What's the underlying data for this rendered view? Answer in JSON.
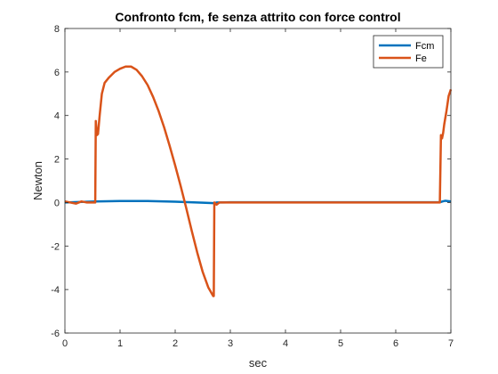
{
  "chart_data": {
    "type": "line",
    "title": "Confronto fcm, fe senza attrito con force control",
    "xlabel": "sec",
    "ylabel": "Newton",
    "xlim": [
      0,
      7
    ],
    "ylim": [
      -6,
      8
    ],
    "xticks": [
      0,
      1,
      2,
      3,
      4,
      5,
      6,
      7
    ],
    "yticks": [
      -6,
      -4,
      -2,
      0,
      2,
      4,
      6,
      8
    ],
    "grid": false,
    "legend_position": "top-right",
    "series": [
      {
        "name": "Fcm",
        "color": "#0072BD",
        "x": [
          0,
          0.55,
          1.0,
          1.5,
          2.0,
          2.5,
          2.7,
          2.75,
          3.0,
          4.0,
          5.0,
          6.0,
          6.8,
          6.85,
          6.9,
          7.0
        ],
        "y": [
          0.0,
          0.05,
          0.07,
          0.07,
          0.04,
          -0.01,
          -0.03,
          0.0,
          0.01,
          0.01,
          0.01,
          0.01,
          0.01,
          0.05,
          0.08,
          0.05
        ]
      },
      {
        "name": "Fe",
        "color": "#D95319",
        "x": [
          0.0,
          0.1,
          0.2,
          0.3,
          0.4,
          0.55,
          0.56,
          0.58,
          0.6,
          0.63,
          0.67,
          0.72,
          0.8,
          0.9,
          1.0,
          1.1,
          1.2,
          1.3,
          1.4,
          1.5,
          1.6,
          1.7,
          1.8,
          1.9,
          2.0,
          2.1,
          2.2,
          2.3,
          2.4,
          2.5,
          2.6,
          2.69,
          2.7,
          2.71,
          2.75,
          2.8,
          3.0,
          4.0,
          5.0,
          6.0,
          6.8,
          6.82,
          6.84,
          6.86,
          6.88,
          6.92,
          6.96,
          7.0
        ],
        "y": [
          0.05,
          0.0,
          -0.05,
          0.05,
          0.0,
          0.0,
          3.75,
          3.1,
          3.15,
          4.0,
          5.0,
          5.5,
          5.75,
          6.0,
          6.15,
          6.25,
          6.25,
          6.1,
          5.8,
          5.4,
          4.85,
          4.2,
          3.45,
          2.6,
          1.7,
          0.75,
          -0.25,
          -1.3,
          -2.3,
          -3.2,
          -3.9,
          -4.3,
          -4.3,
          0.0,
          -0.1,
          0.0,
          0.0,
          0.0,
          0.0,
          0.0,
          0.0,
          3.1,
          2.95,
          3.2,
          3.6,
          4.2,
          4.9,
          5.2
        ]
      }
    ]
  }
}
